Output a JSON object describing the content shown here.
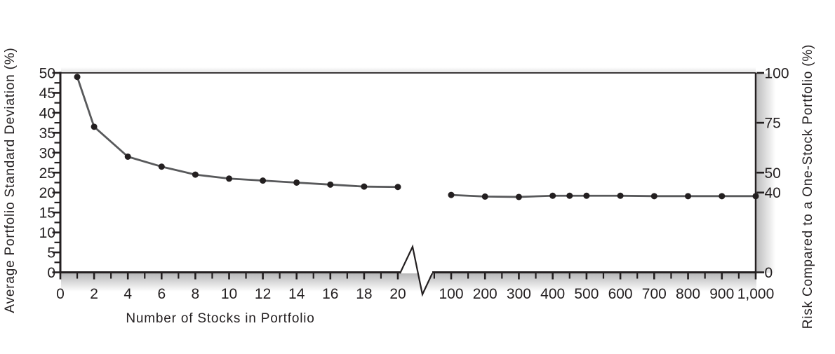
{
  "chart_data": {
    "type": "line",
    "title": "",
    "xlabel": "Number of Stocks in Portfolio",
    "ylabel_left": "Average Portfolio Standard Deviation (%)",
    "ylabel_right": "Risk Compared to a One-Stock Portfolio (%)",
    "grid": false,
    "legend": false,
    "axis_color": "#231f20",
    "x_axis": {
      "has_break": true,
      "segment1": {
        "range": [
          0,
          20
        ],
        "tick_labels": [
          "0",
          "2",
          "4",
          "6",
          "8",
          "10",
          "12",
          "14",
          "16",
          "18",
          "20"
        ],
        "minor_tick_step": 1
      },
      "segment2": {
        "range": [
          100,
          1000
        ],
        "tick_labels": [
          "100",
          "200",
          "300",
          "400",
          "500",
          "600",
          "700",
          "800",
          "900",
          "1,000"
        ],
        "minor_tick_step": 50
      }
    },
    "y_axis_left": {
      "range": [
        0,
        50
      ],
      "tick_labels": [
        "0",
        "5",
        "10",
        "15",
        "20",
        "25",
        "30",
        "35",
        "40",
        "45",
        "50"
      ],
      "minor_tick_step": 2.5
    },
    "y_axis_right": {
      "range": [
        0,
        100
      ],
      "tick_labels": [
        "0",
        "40",
        "50",
        "75",
        "100"
      ]
    },
    "series": [
      {
        "name": "average-portfolio-standard-deviation",
        "line_color": "#58595b",
        "marker_color": "#231f20",
        "segment1_points": [
          [
            1,
            49.0
          ],
          [
            2,
            36.5
          ],
          [
            4,
            29.0
          ],
          [
            6,
            26.5
          ],
          [
            8,
            24.5
          ],
          [
            10,
            23.5
          ],
          [
            12,
            23.0
          ],
          [
            14,
            22.5
          ],
          [
            16,
            22.0
          ],
          [
            18,
            21.5
          ],
          [
            20,
            21.4
          ]
        ],
        "segment2_points": [
          [
            100,
            19.4
          ],
          [
            200,
            19.0
          ],
          [
            300,
            18.9
          ],
          [
            400,
            19.2
          ],
          [
            450,
            19.2
          ],
          [
            500,
            19.2
          ],
          [
            600,
            19.2
          ],
          [
            700,
            19.1
          ],
          [
            800,
            19.1
          ],
          [
            900,
            19.1
          ],
          [
            1000,
            19.1
          ]
        ]
      }
    ]
  }
}
